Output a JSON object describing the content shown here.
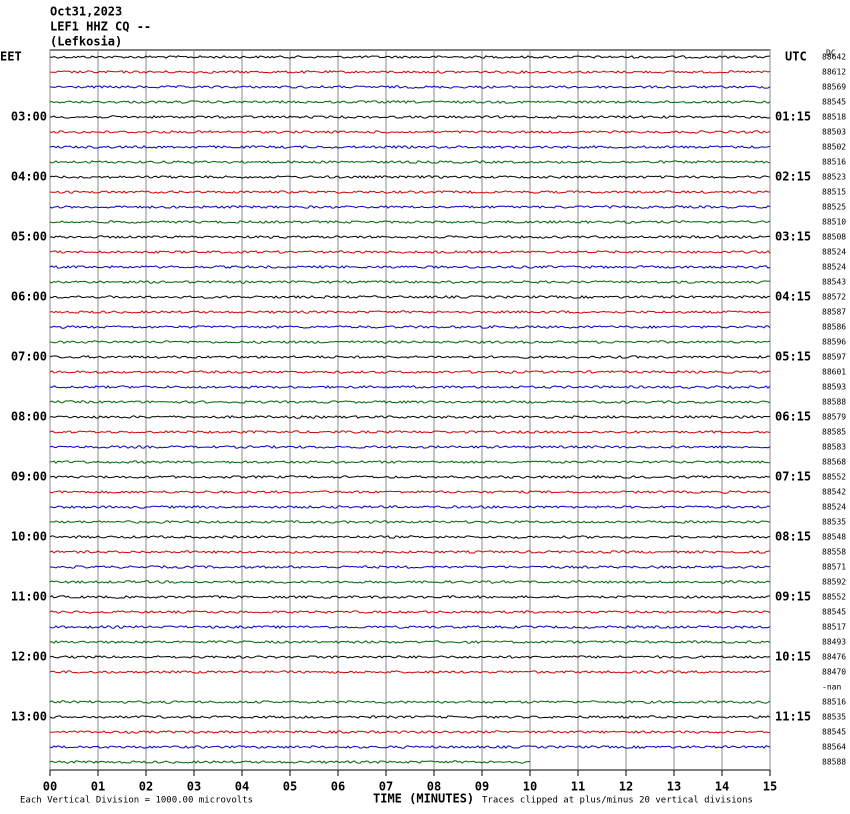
{
  "chart_data": {
    "type": "helicorder",
    "title_lines": [
      "Oct31,2023",
      "LEF1 HHZ CQ --",
      "(Lefkosia)"
    ],
    "left_zone": "EET",
    "right_zone": "UTC",
    "dc_label": "DC",
    "left_times": [
      "03:00",
      "04:00",
      "05:00",
      "06:00",
      "07:00",
      "08:00",
      "09:00",
      "10:00",
      "11:00",
      "12:00",
      "13:00"
    ],
    "right_times": [
      "01:15",
      "02:15",
      "03:15",
      "04:15",
      "05:15",
      "06:15",
      "07:15",
      "08:15",
      "09:15",
      "10:15",
      "11:15"
    ],
    "colors": [
      "#000000",
      "#d00000",
      "#0000c0",
      "#006400"
    ],
    "traces": [
      {
        "label": "88642"
      },
      {
        "label": "88612"
      },
      {
        "label": "88569"
      },
      {
        "label": "88545"
      },
      {
        "label": "88518"
      },
      {
        "label": "88503"
      },
      {
        "label": "88502"
      },
      {
        "label": "88516"
      },
      {
        "label": "88523"
      },
      {
        "label": "88515"
      },
      {
        "label": "88525"
      },
      {
        "label": "88510"
      },
      {
        "label": "88508"
      },
      {
        "label": "88524"
      },
      {
        "label": "88524"
      },
      {
        "label": "88543"
      },
      {
        "label": "88572"
      },
      {
        "label": "88587"
      },
      {
        "label": "88586"
      },
      {
        "label": "88596"
      },
      {
        "label": "88597"
      },
      {
        "label": "88601"
      },
      {
        "label": "88593"
      },
      {
        "label": "88588"
      },
      {
        "label": "88579"
      },
      {
        "label": "88585"
      },
      {
        "label": "88583"
      },
      {
        "label": "88568"
      },
      {
        "label": "88552"
      },
      {
        "label": "88542"
      },
      {
        "label": "88524"
      },
      {
        "label": "88535"
      },
      {
        "label": "88548"
      },
      {
        "label": "88558"
      },
      {
        "label": "88571"
      },
      {
        "label": "88592"
      },
      {
        "label": "88552"
      },
      {
        "label": "88545"
      },
      {
        "label": "88517"
      },
      {
        "label": "88493"
      },
      {
        "label": "88476"
      },
      {
        "label": "88470"
      },
      {
        "label": "-nan",
        "trace": false
      },
      {
        "label": "88516"
      },
      {
        "label": "88535"
      },
      {
        "label": "88545"
      },
      {
        "label": "88564"
      },
      {
        "label": "88588",
        "end": 10
      }
    ],
    "xlim": [
      0,
      15
    ],
    "xticks": [
      {
        "value": 0,
        "label": "00"
      },
      {
        "value": 1,
        "label": "01"
      },
      {
        "value": 2,
        "label": "02"
      },
      {
        "value": 3,
        "label": "03"
      },
      {
        "value": 4,
        "label": "04"
      },
      {
        "value": 5,
        "label": "05"
      },
      {
        "value": 6,
        "label": "06"
      },
      {
        "value": 7,
        "label": "07"
      },
      {
        "value": 8,
        "label": "08"
      },
      {
        "value": 9,
        "label": "09"
      },
      {
        "value": 10,
        "label": "10"
      },
      {
        "value": 11,
        "label": "11"
      },
      {
        "value": 12,
        "label": "12"
      },
      {
        "value": 13,
        "label": "13"
      },
      {
        "value": 14,
        "label": "14"
      },
      {
        "value": 15,
        "label": "15"
      }
    ],
    "xlabel": "TIME (MINUTES)",
    "scale_note": "Each Vertical Division = 1000.00 microvolts",
    "clip_note": "Traces clipped at plus/minus 20 vertical divisions"
  }
}
